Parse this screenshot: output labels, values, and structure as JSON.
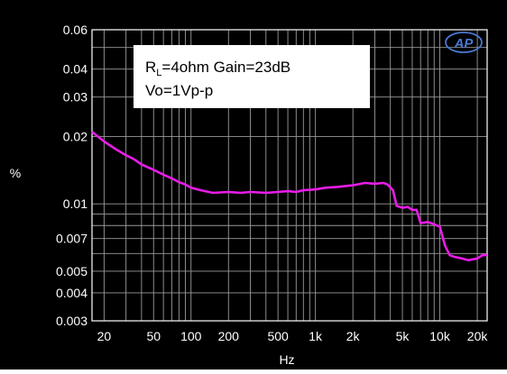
{
  "chart_data": {
    "type": "line",
    "title": "",
    "xlabel": "Hz",
    "ylabel": "%",
    "x_scale": "log",
    "y_scale": "log",
    "xlim": [
      16,
      24000
    ],
    "ylim": [
      0.003,
      0.06
    ],
    "grid": true,
    "x_ticks": [
      {
        "value": 20,
        "label": "20"
      },
      {
        "value": 50,
        "label": "50"
      },
      {
        "value": 100,
        "label": "100"
      },
      {
        "value": 200,
        "label": "200"
      },
      {
        "value": 500,
        "label": "500"
      },
      {
        "value": 1000,
        "label": "1k"
      },
      {
        "value": 2000,
        "label": "2k"
      },
      {
        "value": 5000,
        "label": "5k"
      },
      {
        "value": 10000,
        "label": "10k"
      },
      {
        "value": 20000,
        "label": "20k"
      }
    ],
    "y_ticks": [
      {
        "value": 0.06,
        "label": "0.06"
      },
      {
        "value": 0.04,
        "label": "0.04"
      },
      {
        "value": 0.03,
        "label": "0.03"
      },
      {
        "value": 0.02,
        "label": "0.02"
      },
      {
        "value": 0.01,
        "label": "0.01"
      },
      {
        "value": 0.007,
        "label": "0.007"
      },
      {
        "value": 0.005,
        "label": "0.005"
      },
      {
        "value": 0.004,
        "label": "0.004"
      },
      {
        "value": 0.003,
        "label": "0.003"
      }
    ],
    "annotation": {
      "line1_main": "R",
      "line1_sub": "L",
      "line1_rest": "=4ohm Gain=23dB",
      "line2": "Vo=1Vp-p"
    },
    "logo_text": "AP",
    "series": [
      {
        "color": "#e81ce8",
        "x": [
          16,
          20,
          25,
          30,
          35,
          40,
          50,
          60,
          70,
          80,
          90,
          100,
          120,
          150,
          200,
          250,
          300,
          400,
          500,
          600,
          700,
          800,
          1000,
          1200,
          1500,
          2000,
          2500,
          3000,
          3500,
          3800,
          4200,
          4500,
          5000,
          5500,
          6000,
          6500,
          7000,
          8000,
          9000,
          10000,
          11000,
          12000,
          13000,
          15000,
          17000,
          20000,
          22000,
          24000
        ],
        "y": [
          0.021,
          0.019,
          0.0175,
          0.0165,
          0.0158,
          0.015,
          0.0142,
          0.0135,
          0.013,
          0.0125,
          0.0122,
          0.0118,
          0.0115,
          0.0112,
          0.0113,
          0.0112,
          0.0113,
          0.0112,
          0.0113,
          0.0114,
          0.0113,
          0.0115,
          0.0116,
          0.0118,
          0.0119,
          0.0121,
          0.0124,
          0.0123,
          0.0124,
          0.0122,
          0.0115,
          0.0098,
          0.0096,
          0.0097,
          0.0094,
          0.0094,
          0.0082,
          0.0083,
          0.0081,
          0.0079,
          0.0065,
          0.0059,
          0.0058,
          0.0057,
          0.0056,
          0.0057,
          0.0059,
          0.0059
        ]
      }
    ]
  }
}
